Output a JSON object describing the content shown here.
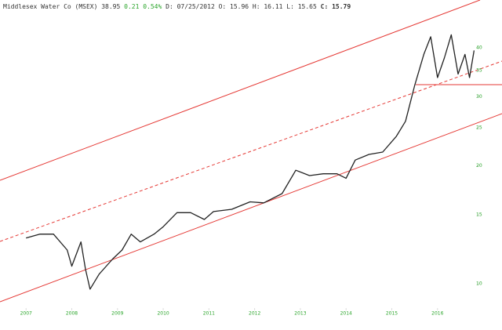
{
  "chart_data": {
    "type": "line",
    "title": "Middlesex Water Co (MSEX) 38.95",
    "change": "0.21 0.54%",
    "quote": "D: 07/25/2012 O: 15.96 H: 16.11 L: 15.65",
    "close_label": "C:",
    "close": "15.79",
    "x": [
      2007.0,
      2007.3,
      2007.6,
      2007.9,
      2008.0,
      2008.2,
      2008.3,
      2008.4,
      2008.6,
      2008.9,
      2009.1,
      2009.3,
      2009.5,
      2009.8,
      2010.0,
      2010.3,
      2010.6,
      2010.9,
      2011.1,
      2011.5,
      2011.9,
      2012.2,
      2012.6,
      2012.9,
      2013.2,
      2013.5,
      2013.8,
      2014.0,
      2014.2,
      2014.5,
      2014.8,
      2015.1,
      2015.3,
      2015.5,
      2015.7,
      2015.85,
      2016.0,
      2016.15,
      2016.3,
      2016.45,
      2016.6,
      2016.7,
      2016.8
    ],
    "values": [
      13.1,
      13.4,
      13.4,
      12.2,
      11.1,
      12.8,
      10.9,
      9.7,
      10.6,
      11.6,
      12.2,
      13.4,
      12.8,
      13.4,
      14.0,
      15.2,
      15.2,
      14.6,
      15.3,
      15.5,
      16.2,
      16.1,
      17.0,
      19.5,
      18.9,
      19.1,
      19.1,
      18.6,
      20.7,
      21.4,
      21.7,
      23.8,
      26.0,
      32.1,
      38.5,
      42.7,
      33.6,
      37.7,
      43.2,
      34.3,
      38.5,
      33.6,
      39.4
    ],
    "color": "#222222",
    "log_y": true,
    "xlim": [
      2006.43,
      2016.93
    ],
    "xticks": [
      2007,
      2008,
      2009,
      2010,
      2011,
      2012,
      2013,
      2014,
      2015,
      2016
    ],
    "ylim": [
      8.6,
      53
    ],
    "yticks": [
      10,
      15,
      20,
      25,
      30,
      35,
      40
    ]
  }
}
